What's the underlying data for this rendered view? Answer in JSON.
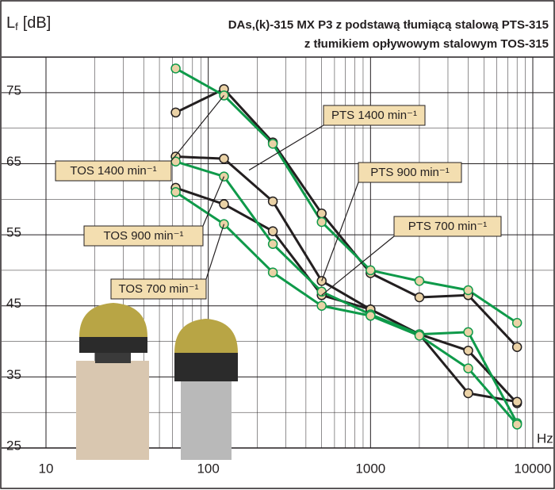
{
  "chart_data": {
    "type": "line",
    "title": "DAs,(k)-315 MX P3 z podstawą tłumiącą stalową PTS-315",
    "subtitle": "z tłumikiem opływowym stalowym TOS-315",
    "y_label": {
      "symbol": "L",
      "subscript": "f",
      "unit": "[dB]"
    },
    "x_unit": "Hz",
    "x": [
      63,
      125,
      250,
      500,
      1000,
      2000,
      4000,
      8000
    ],
    "log_x": true,
    "xlim": [
      10,
      10000
    ],
    "xticks": [
      10,
      100,
      1000,
      10000
    ],
    "x_minor_ticks": [
      20,
      30,
      40,
      50,
      60,
      70,
      80,
      90,
      200,
      300,
      400,
      500,
      600,
      700,
      800,
      900,
      2000,
      3000,
      4000,
      5000,
      6000,
      7000,
      8000,
      9000
    ],
    "ylim": [
      25,
      80
    ],
    "yticks": [
      25,
      35,
      45,
      55,
      65,
      75
    ],
    "y_minor_ticks": [
      30,
      40,
      50,
      60,
      70
    ],
    "grid": true,
    "series": [
      {
        "name": "PTS 1400 min⁻¹",
        "color": "#231f20",
        "values": [
          72.2,
          75.5,
          68,
          58,
          49.6,
          46.2,
          46.5,
          39.2
        ]
      },
      {
        "name": "PTS 900 min⁻¹",
        "color": "#231f20",
        "values": [
          66,
          65.7,
          59.7,
          48.5,
          44.5,
          41,
          38.7,
          31.3
        ]
      },
      {
        "name": "PTS 700 min⁻¹",
        "color": "#231f20",
        "values": [
          61.6,
          59.3,
          55.5,
          46.5,
          44.5,
          41,
          32.7,
          31.5
        ]
      },
      {
        "name": "TOS 1400 min⁻¹",
        "color": "#0f9a4a",
        "values": [
          78.4,
          74.6,
          67.8,
          56.8,
          50,
          48.5,
          47.2,
          42.6
        ]
      },
      {
        "name": "TOS 900 min⁻¹",
        "color": "#0f9a4a",
        "values": [
          65.3,
          63.2,
          53.7,
          47,
          43.8,
          41,
          41.3,
          28.5
        ]
      },
      {
        "name": "TOS 700 min⁻¹",
        "color": "#0f9a4a",
        "values": [
          61,
          56.5,
          49.7,
          45,
          43.6,
          40.8,
          36.2,
          28.3
        ]
      }
    ]
  }
}
